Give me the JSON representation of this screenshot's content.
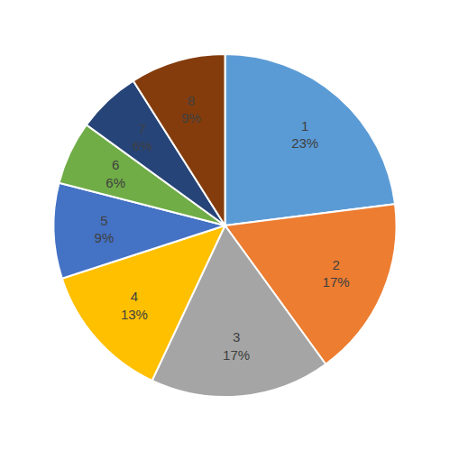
{
  "chart_data": {
    "type": "pie",
    "categories": [
      "1",
      "2",
      "3",
      "4",
      "5",
      "6",
      "7",
      "8"
    ],
    "values": [
      23,
      17,
      17,
      13,
      9,
      6,
      6,
      9
    ],
    "value_labels": [
      "23%",
      "17%",
      "17%",
      "13%",
      "9%",
      "6%",
      "6%",
      "9%"
    ],
    "colors": [
      "#5B9BD5",
      "#ED7D31",
      "#A5A5A5",
      "#FFC000",
      "#4472C4",
      "#70AD47",
      "#264478",
      "#843C0C"
    ],
    "data_labels": true
  }
}
